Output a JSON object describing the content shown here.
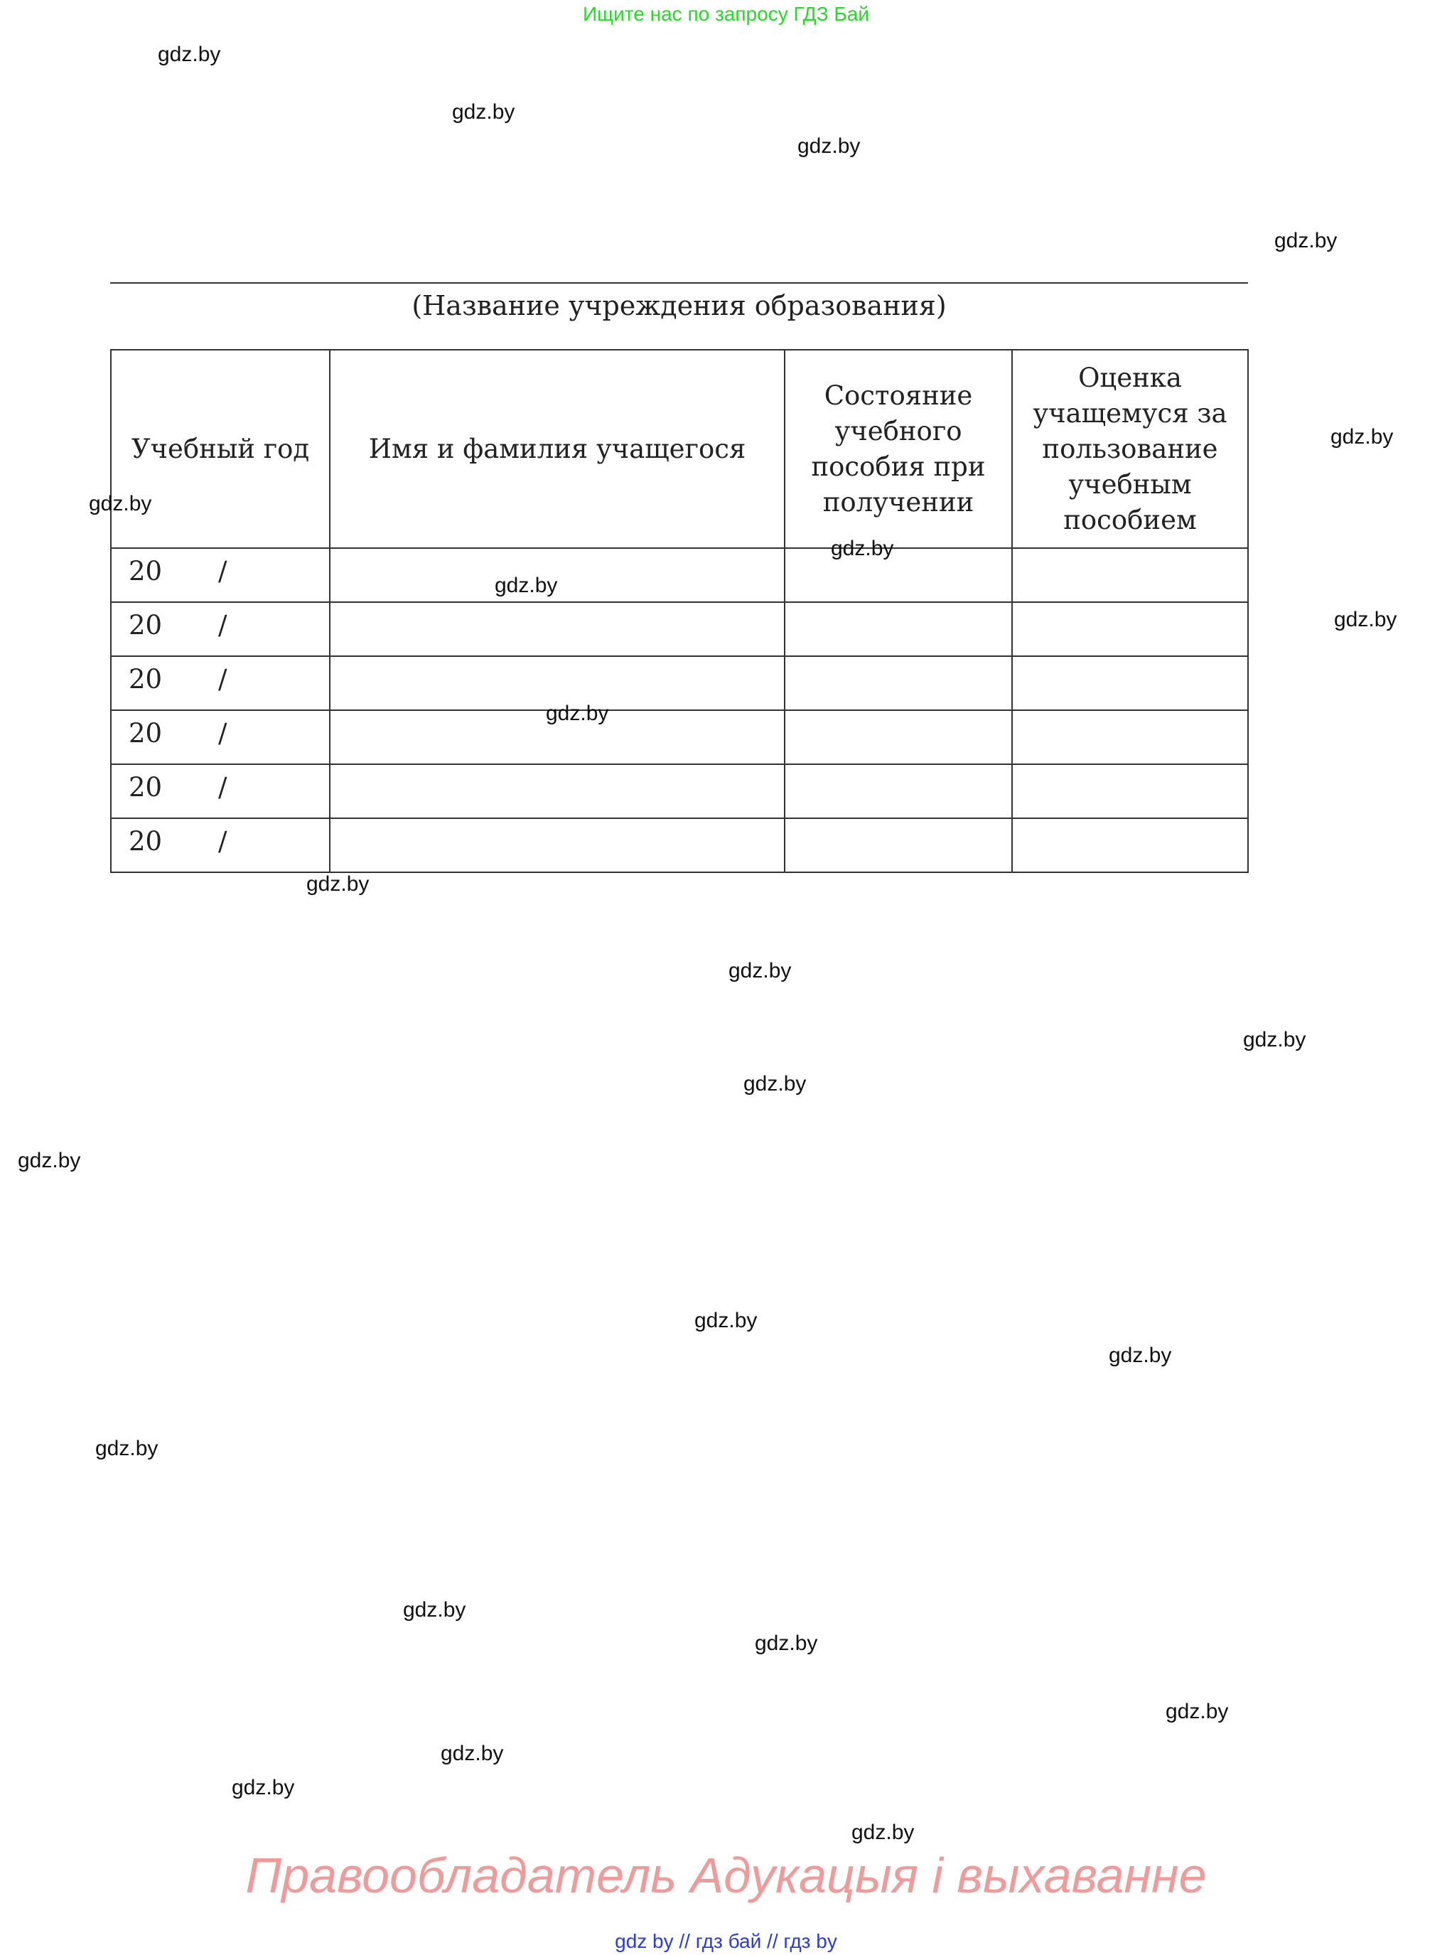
{
  "top_note": "Ищите нас по запросу ГДЗ Бай",
  "caption": "(Название учреждения образования)",
  "table": {
    "headers": [
      "Учебный год",
      "Имя и фамилия учащегося",
      "Состояние учебного пособия при получении",
      "Оценка учащемуся за пользование учебным пособием"
    ],
    "rows": [
      {
        "year_prefix": "20",
        "separator": "/"
      },
      {
        "year_prefix": "20",
        "separator": "/"
      },
      {
        "year_prefix": "20",
        "separator": "/"
      },
      {
        "year_prefix": "20",
        "separator": "/"
      },
      {
        "year_prefix": "20",
        "separator": "/"
      },
      {
        "year_prefix": "20",
        "separator": "/"
      }
    ]
  },
  "watermark": "gdz.by",
  "rights_holder": "Правообладатель Адукацыя і выхаванне",
  "footer": "gdz by  //  гдз бай  //  гдз by",
  "colors": {
    "top_note": "#22dd22",
    "rights_holder": "#f09a9a",
    "footer": "#2a3ce0"
  }
}
